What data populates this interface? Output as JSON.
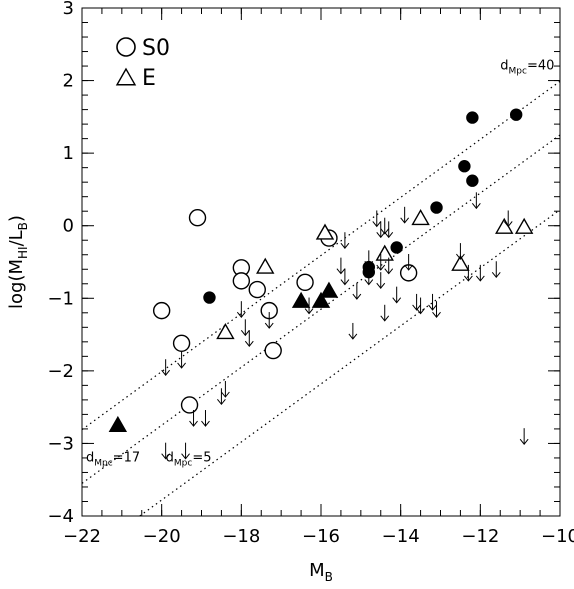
{
  "chart_data": {
    "type": "scatter",
    "title": "",
    "xlabel": "M",
    "xlabel_sub": "B",
    "ylabel_parts": [
      "log(M",
      "HI",
      "/L",
      "B",
      ")"
    ],
    "xlim": [
      -22,
      -10
    ],
    "ylim": [
      -4,
      3
    ],
    "x_ticks": [
      -22,
      -20,
      -18,
      -16,
      -14,
      -12,
      -10
    ],
    "y_ticks": [
      -4,
      -3,
      -2,
      -1,
      0,
      1,
      2,
      3
    ],
    "x_tick_labels": [
      "−22",
      "−20",
      "−18",
      "−16",
      "−14",
      "−12",
      "−10"
    ],
    "y_tick_labels": [
      "−4",
      "−3",
      "−2",
      "−1",
      "0",
      "1",
      "2",
      "3"
    ],
    "grid": false,
    "legend_position": "top-left",
    "legend": [
      {
        "label": "S0",
        "marker": "circle"
      },
      {
        "label": "E",
        "marker": "triangle"
      }
    ],
    "colors": {
      "marker": "#000000",
      "background": "#ffffff"
    },
    "reference_lines": [
      {
        "label_main": "d",
        "label_sub": "Mpc",
        "label_value": "=40",
        "intercept_at_x_minus22": -2.81,
        "slope": 0.4,
        "style": "dotted"
      },
      {
        "label_main": "d",
        "label_sub": "Mpc",
        "label_value": "=17",
        "intercept_at_x_minus22": -3.55,
        "slope": 0.4,
        "style": "dotted"
      },
      {
        "label_main": "d",
        "label_sub": "Mpc",
        "label_value": "=5",
        "intercept_at_x_minus22": -4.58,
        "slope": 0.4,
        "style": "dotted"
      }
    ],
    "series": [
      {
        "name": "S0",
        "marker": "circle",
        "filled": false,
        "points": [
          [
            -20.0,
            -1.17
          ],
          [
            -19.1,
            0.11
          ],
          [
            -19.5,
            -1.62
          ],
          [
            -19.3,
            -2.47
          ],
          [
            -18.0,
            -0.58
          ],
          [
            -18.0,
            -0.76
          ],
          [
            -17.6,
            -0.88
          ],
          [
            -17.3,
            -1.17
          ],
          [
            -17.2,
            -1.72
          ],
          [
            -16.4,
            -0.78
          ],
          [
            -15.8,
            -0.17
          ],
          [
            -13.8,
            -0.65
          ]
        ]
      },
      {
        "name": "S0 (filled)",
        "marker": "circle",
        "filled": true,
        "points": [
          [
            -18.8,
            -0.99
          ],
          [
            -14.8,
            -0.57
          ],
          [
            -14.8,
            -0.64
          ],
          [
            -14.1,
            -0.3
          ],
          [
            -13.1,
            0.25
          ],
          [
            -12.4,
            0.82
          ],
          [
            -12.2,
            0.62
          ],
          [
            -12.2,
            1.49
          ],
          [
            -11.1,
            1.53
          ]
        ]
      },
      {
        "name": "E",
        "marker": "triangle",
        "filled": false,
        "points": [
          [
            -18.4,
            -1.47
          ],
          [
            -17.4,
            -0.57
          ],
          [
            -15.9,
            -0.1
          ],
          [
            -14.4,
            -0.39
          ],
          [
            -13.5,
            0.1
          ],
          [
            -12.5,
            -0.53
          ],
          [
            -11.4,
            -0.02
          ],
          [
            -10.9,
            -0.02
          ]
        ]
      },
      {
        "name": "E (filled)",
        "marker": "triangle",
        "filled": true,
        "points": [
          [
            -21.1,
            -2.75
          ],
          [
            -16.5,
            -1.04
          ],
          [
            -16.0,
            -1.04
          ],
          [
            -15.8,
            -0.9
          ]
        ]
      },
      {
        "name": "upper limits",
        "marker": "down-arrow",
        "filled": false,
        "points": [
          [
            -19.9,
            -1.95
          ],
          [
            -19.5,
            -1.85
          ],
          [
            -19.9,
            -3.1
          ],
          [
            -19.4,
            -3.1
          ],
          [
            -19.2,
            -2.65
          ],
          [
            -18.9,
            -2.65
          ],
          [
            -18.4,
            -2.25
          ],
          [
            -18.5,
            -2.35
          ],
          [
            -18.0,
            -1.15
          ],
          [
            -17.9,
            -1.4
          ],
          [
            -17.8,
            -1.55
          ],
          [
            -17.3,
            -1.3
          ],
          [
            -16.3,
            -1.1
          ],
          [
            -15.5,
            -0.55
          ],
          [
            -15.4,
            -0.2
          ],
          [
            -15.4,
            -0.7
          ],
          [
            -15.2,
            -1.45
          ],
          [
            -15.1,
            -0.9
          ],
          [
            -14.8,
            -0.45
          ],
          [
            -14.8,
            -0.7
          ],
          [
            -14.6,
            0.1
          ],
          [
            -14.5,
            -0.05
          ],
          [
            -14.5,
            -0.5
          ],
          [
            -14.5,
            -0.75
          ],
          [
            -14.4,
            -1.2
          ],
          [
            -14.4,
            0.0
          ],
          [
            -14.3,
            -0.05
          ],
          [
            -14.3,
            -0.55
          ],
          [
            -14.1,
            -0.95
          ],
          [
            -13.9,
            0.15
          ],
          [
            -13.8,
            -0.5
          ],
          [
            -13.6,
            -1.05
          ],
          [
            -13.5,
            -1.1
          ],
          [
            -13.2,
            -1.05
          ],
          [
            -13.1,
            -1.15
          ],
          [
            -12.5,
            -0.35
          ],
          [
            -12.3,
            -0.65
          ],
          [
            -12.1,
            0.35
          ],
          [
            -12.0,
            -0.65
          ],
          [
            -11.6,
            -0.6
          ],
          [
            -11.3,
            0.1
          ],
          [
            -10.9,
            -2.9
          ]
        ]
      }
    ]
  }
}
